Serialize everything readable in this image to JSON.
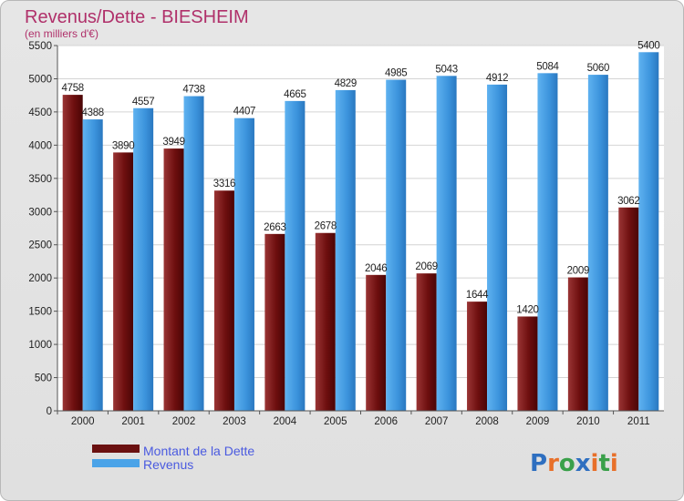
{
  "chart_data": {
    "type": "bar",
    "title": "Revenus/Dette - BIESHEIM",
    "subtitle": "(en milliers d'€)",
    "categories": [
      "2000",
      "2001",
      "2002",
      "2003",
      "2004",
      "2005",
      "2006",
      "2007",
      "2008",
      "2009",
      "2010",
      "2011"
    ],
    "series": [
      {
        "name": "Montant de la Dette",
        "color": "#7a1a1a",
        "values": [
          4758,
          3890,
          3949,
          3316,
          2663,
          2678,
          2046,
          2069,
          1644,
          1420,
          2009,
          3062
        ]
      },
      {
        "name": "Revenus",
        "color": "#4aa3e8",
        "values": [
          4388,
          4557,
          4738,
          4407,
          4665,
          4829,
          4985,
          5043,
          4912,
          5084,
          5060,
          5400
        ]
      }
    ],
    "ylim": [
      0,
      5500
    ],
    "yticks": [
      0,
      500,
      1000,
      1500,
      2000,
      2500,
      3000,
      3500,
      4000,
      4500,
      5000,
      5500
    ],
    "grid": true,
    "legend": "bottom-left"
  },
  "logo": {
    "text": "Proxiti"
  }
}
